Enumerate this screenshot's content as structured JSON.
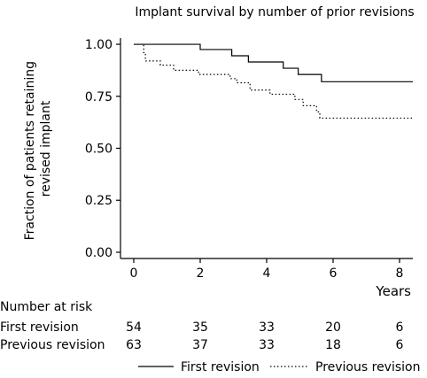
{
  "chart_data": {
    "type": "line",
    "title": "Implant survival by number of prior revisions",
    "xlabel": "Years",
    "ylabel": "Fraction of patients retaining revised implant",
    "xlim": [
      -0.4,
      8.4
    ],
    "ylim": [
      -0.03,
      1.03
    ],
    "xticks": [
      0,
      2,
      4,
      6,
      8
    ],
    "yticks": [
      "0.00",
      "0.25",
      "0.50",
      "0.75",
      "1.00"
    ],
    "grid": false,
    "legend_position": "bottom",
    "series": [
      {
        "name": "First revision",
        "style": "solid",
        "color": "#000000",
        "x": [
          0,
          2.0,
          2.95,
          3.45,
          4.5,
          4.95,
          5.65,
          8.4
        ],
        "y": [
          1.0,
          0.975,
          0.945,
          0.915,
          0.885,
          0.855,
          0.82,
          0.82
        ]
      },
      {
        "name": "Previous revision",
        "style": "dotted",
        "color": "#000000",
        "x": [
          0,
          0.3,
          0.35,
          0.8,
          1.2,
          1.95,
          2.9,
          3.1,
          3.5,
          4.1,
          4.55,
          4.85,
          5.1,
          5.5,
          5.6,
          8.4
        ],
        "y": [
          1.0,
          0.96,
          0.92,
          0.9,
          0.875,
          0.855,
          0.835,
          0.815,
          0.78,
          0.76,
          0.76,
          0.735,
          0.705,
          0.675,
          0.645,
          0.645
        ]
      }
    ],
    "risk_table": {
      "title": "Number at risk",
      "times": [
        0,
        2,
        4,
        6,
        8
      ],
      "rows": [
        {
          "label": "First revision",
          "counts": [
            "54",
            "35",
            "33",
            "20",
            "6"
          ]
        },
        {
          "label": "Previous revision",
          "counts": [
            "63",
            "37",
            "33",
            "18",
            "6"
          ]
        }
      ]
    }
  }
}
